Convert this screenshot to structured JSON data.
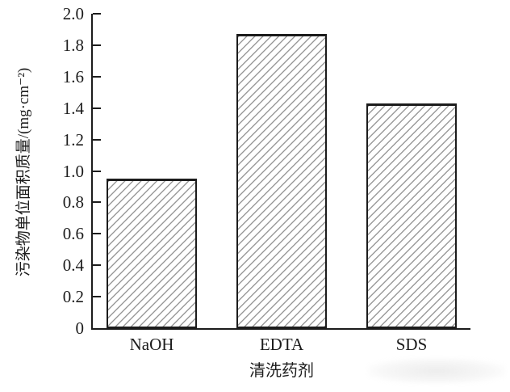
{
  "chart_data": {
    "type": "bar",
    "categories": [
      "NaOH",
      "EDTA",
      "SDS"
    ],
    "values": [
      0.95,
      1.87,
      1.43
    ],
    "title": "",
    "xlabel": "清洗药剂",
    "ylabel": "污染物单位面积质量/(mg·cm⁻²)",
    "ylim": [
      0,
      2.0
    ],
    "ytick_step": 0.2,
    "ytick_labels": [
      "0",
      "0.2",
      "0.4",
      "0.6",
      "0.8",
      "1.0",
      "1.2",
      "1.4",
      "1.6",
      "1.8",
      "2.0"
    ],
    "grid": false,
    "legend": null,
    "bar_fill": "#ffffff",
    "bar_hatch": "diagonal-forward-slash",
    "bar_hatch_color": "#9b9b9b",
    "bar_border_color": "#1c1c1c",
    "axis_color": "#1c1c1c",
    "background_color": "#ffffff"
  }
}
